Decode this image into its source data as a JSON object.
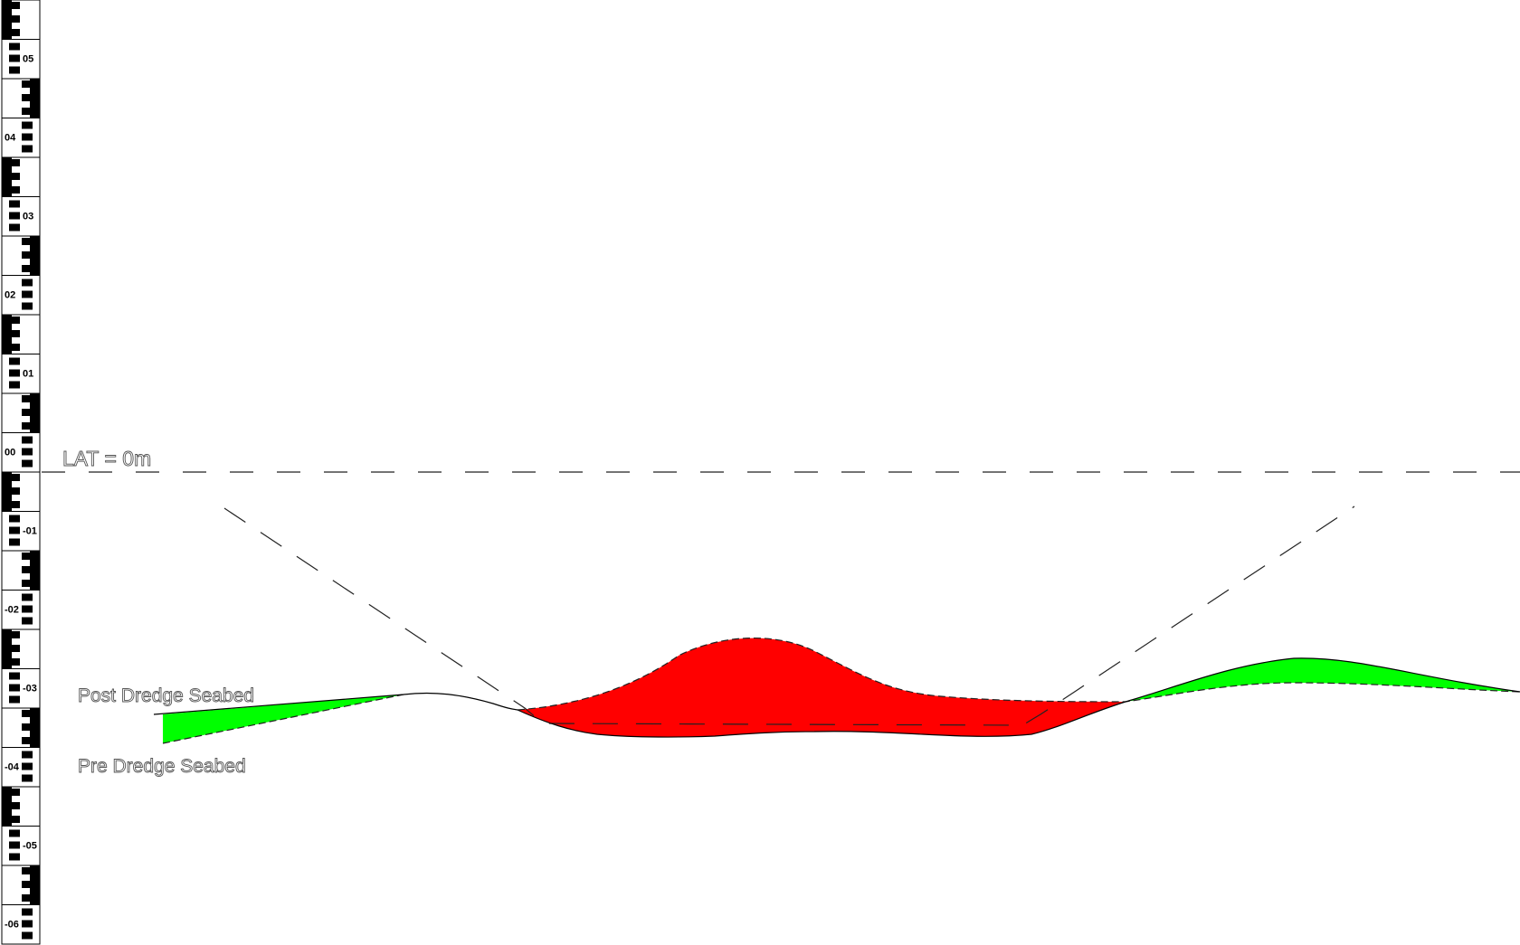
{
  "gauge": {
    "labels": [
      "05",
      "04",
      "03",
      "02",
      "01",
      "00",
      "-01",
      "-02",
      "-03",
      "-04",
      "-05",
      "-06"
    ]
  },
  "annotations": {
    "lat": "LAT = 0m",
    "post_dredge": "Post Dredge Seabed",
    "pre_dredge": "Pre Dredge Seabed"
  },
  "colors": {
    "dredged_area": "#ff0000",
    "fill_area": "#00ff00",
    "gauge_ink": "#000000",
    "line": "#000000"
  }
}
